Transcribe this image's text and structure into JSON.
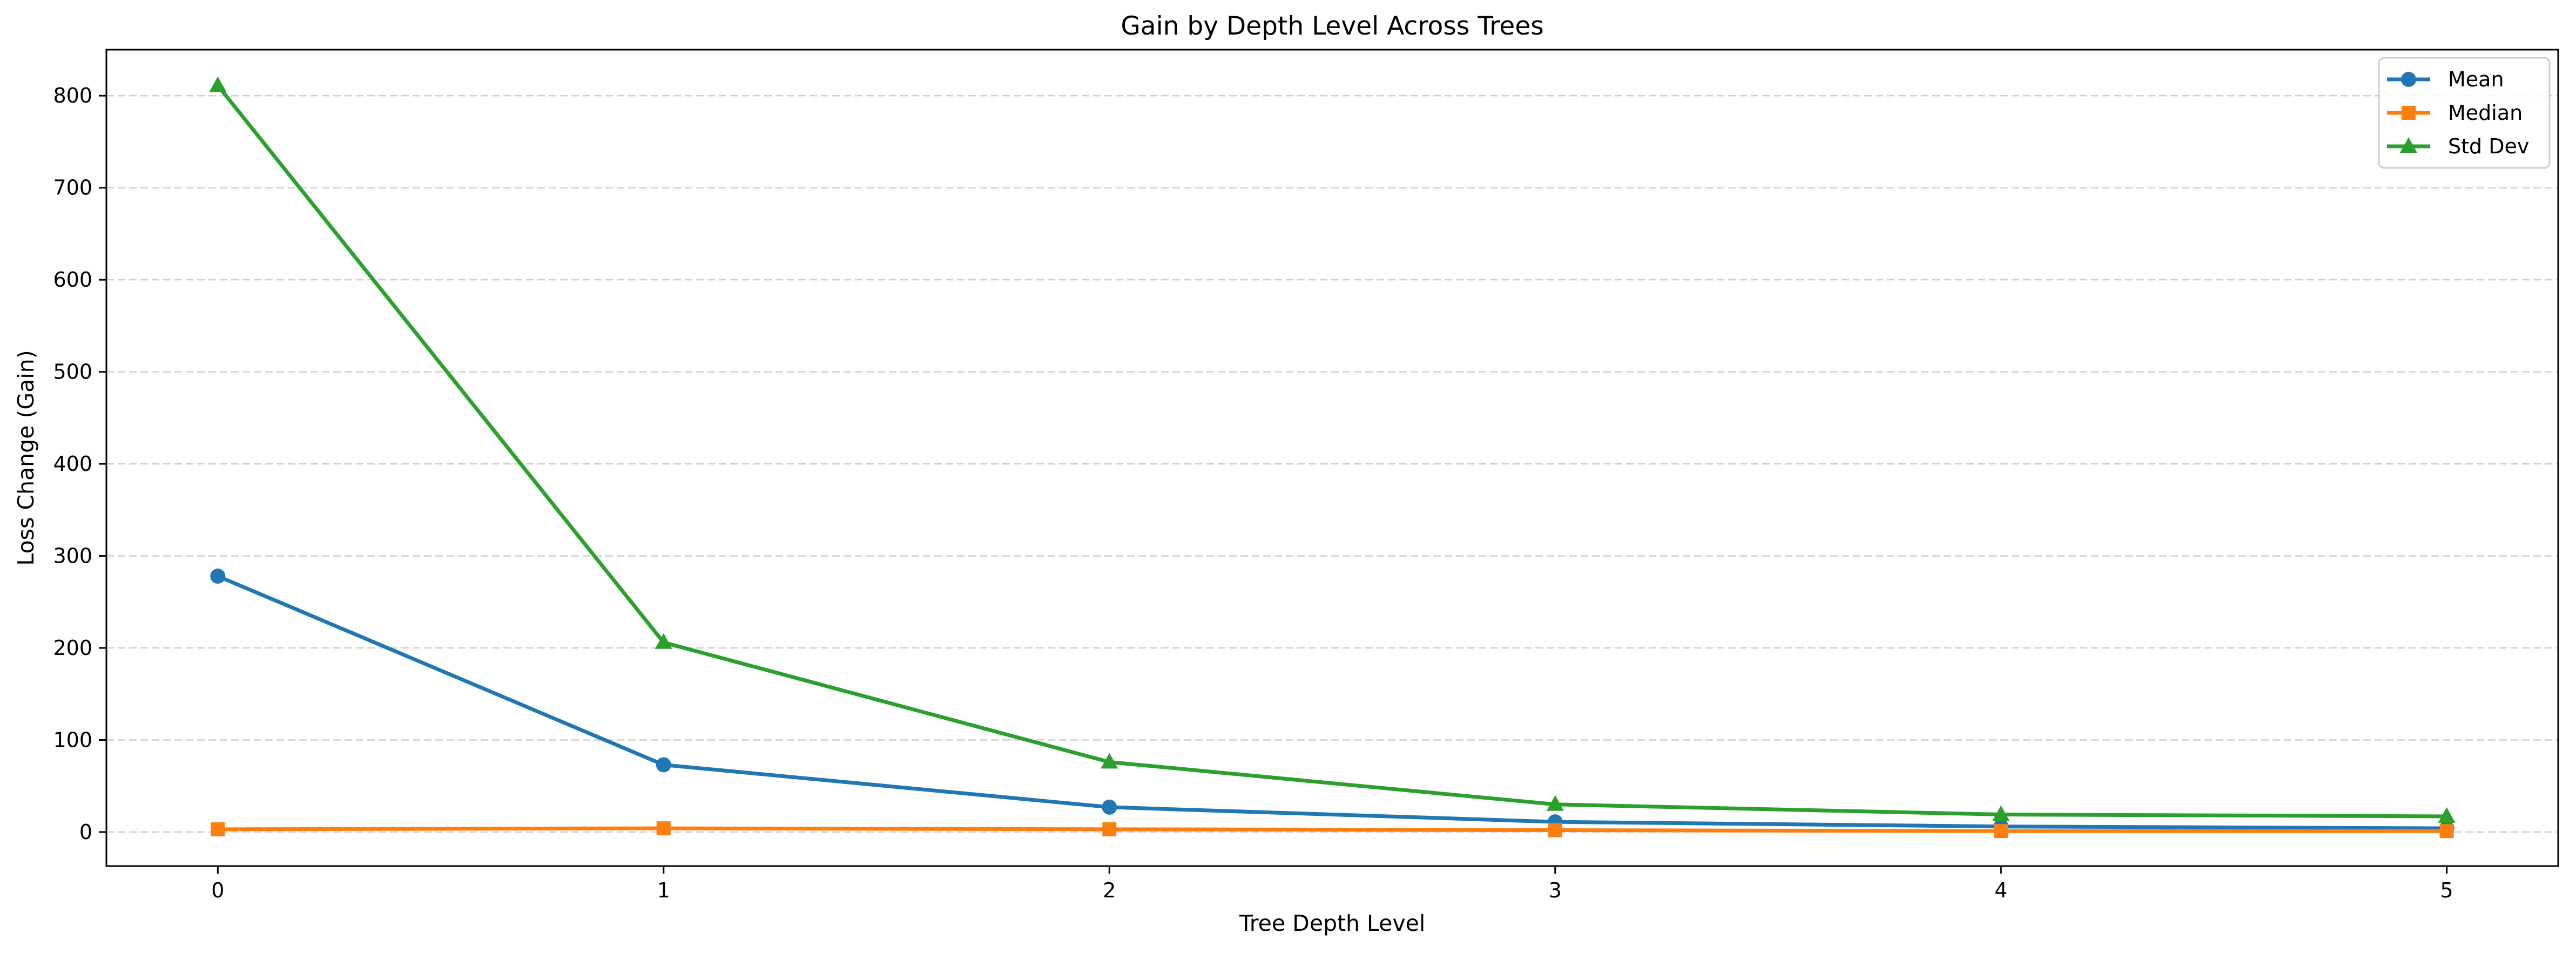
{
  "chart_data": {
    "type": "line",
    "title": "Gain by Depth Level Across Trees",
    "xlabel": "Tree Depth Level",
    "ylabel": "Loss Change (Gain)",
    "x": [
      0,
      1,
      2,
      3,
      4,
      5
    ],
    "xticks": [
      0,
      1,
      2,
      3,
      4,
      5
    ],
    "xlim": [
      -0.25,
      5.25
    ],
    "yticks": [
      0,
      100,
      200,
      300,
      400,
      500,
      600,
      700,
      800
    ],
    "ylim": [
      -37,
      850
    ],
    "grid": "y-dashed",
    "legend_position": "top-right",
    "series": [
      {
        "name": "Mean",
        "color": "#1f77b4",
        "marker": "circle",
        "values": [
          278,
          73,
          27,
          11,
          6,
          4
        ]
      },
      {
        "name": "Median",
        "color": "#ff7f0e",
        "marker": "square",
        "values": [
          3,
          4,
          3,
          2,
          1,
          1
        ]
      },
      {
        "name": "Std Dev",
        "color": "#2ca02c",
        "marker": "triangle",
        "values": [
          811,
          206,
          76,
          30,
          19,
          17
        ]
      }
    ]
  }
}
